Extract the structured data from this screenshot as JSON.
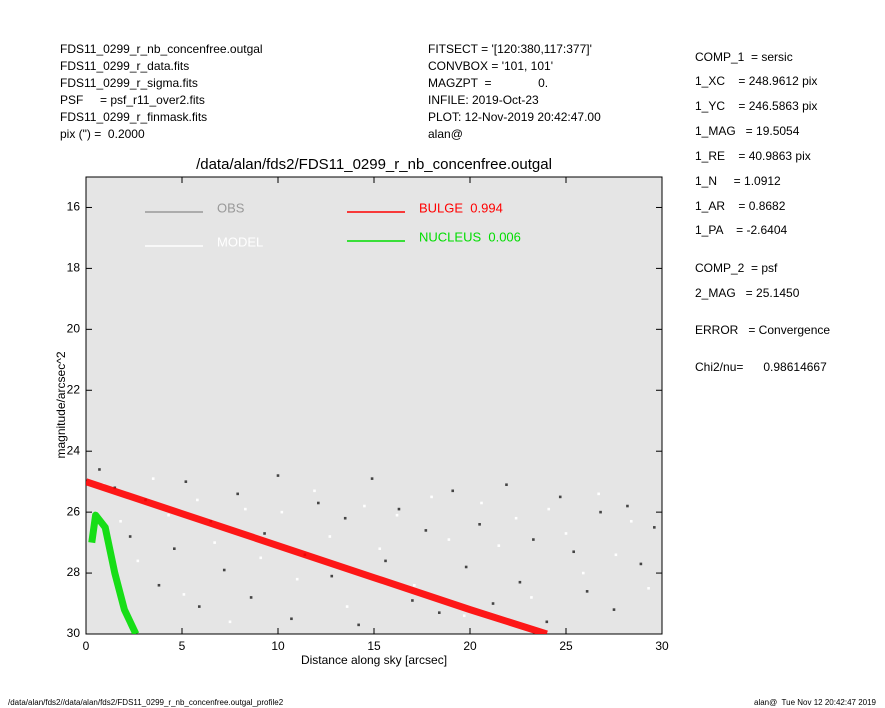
{
  "header": {
    "left": [
      "FDS11_0299_r_nb_concenfree.outgal",
      "FDS11_0299_r_data.fits",
      "FDS11_0299_r_sigma.fits",
      "PSF     = psf_r11_over2.fits",
      "FDS11_0299_r_finmask.fits",
      "pix (\") =  0.2000"
    ],
    "middle": [
      "FITSECT = '[120:380,117:377]'",
      "CONVBOX = '101, 101'",
      "MAGZPT  =              0.",
      "INFILE: 2019-Oct-23",
      "PLOT: 12-Nov-2019 20:42:47.00",
      "alan@"
    ],
    "right": [
      "COMP_1  = sersic",
      "1_XC    = 248.9612 pix",
      "1_YC    = 246.5863 pix",
      "1_MAG   = 19.5054",
      "1_RE    = 40.9863 pix",
      "1_N     = 1.0912",
      "1_AR    = 0.8682",
      "1_PA    = -2.6404",
      "COMP_2  = psf",
      "2_MAG   = 25.1450",
      "ERROR   = Convergence",
      "Chi2/nu=      0.98614667"
    ]
  },
  "footer": {
    "left": "/data/alan/fds2//data/alan/fds2/FDS11_0299_r_nb_concenfree.outgal_profile2",
    "right": "alan@  Tue Nov 12 20:42:47 2019"
  },
  "chart_data": {
    "type": "scatter",
    "title": "/data/alan/fds2/FDS11_0299_r_nb_concenfree.outgal",
    "x_label": "Distance along sky [arcsec]",
    "y_label": "magnitude/arcsec^2",
    "xlim": [
      0,
      30
    ],
    "xticks": [
      0,
      5,
      10,
      15,
      20,
      25,
      30
    ],
    "ylim": [
      30,
      15
    ],
    "yticks": [
      16,
      18,
      20,
      22,
      24,
      26,
      28,
      30
    ],
    "series": [
      {
        "name": "OBS",
        "color": "#444444",
        "legend_color": "#999999",
        "mode": "points",
        "x": [
          0.7,
          1.5,
          2.3,
          3.1,
          3.8,
          4.6,
          5.2,
          5.9,
          6.5,
          7.2,
          7.9,
          8.6,
          9.3,
          10.0,
          10.7,
          11.4,
          12.1,
          12.8,
          13.5,
          14.2,
          14.9,
          15.6,
          16.3,
          17.0,
          17.7,
          18.4,
          19.1,
          19.8,
          20.5,
          21.2,
          21.9,
          22.6,
          23.3,
          24.0,
          24.7,
          25.4,
          26.1,
          26.8,
          27.5,
          28.2,
          28.9,
          29.6
        ],
        "values": [
          24.6,
          25.2,
          26.8,
          25.6,
          28.4,
          27.2,
          25.0,
          29.1,
          26.3,
          27.9,
          25.4,
          28.8,
          26.7,
          24.8,
          29.5,
          27.4,
          25.7,
          28.1,
          26.2,
          29.7,
          24.9,
          27.6,
          25.9,
          28.9,
          26.6,
          29.3,
          25.3,
          27.8,
          26.4,
          29.0,
          25.1,
          28.3,
          26.9,
          29.6,
          25.5,
          27.3,
          28.6,
          26.0,
          29.2,
          25.8,
          27.7,
          26.5
        ]
      },
      {
        "name": "MODEL",
        "color": "#ffffff",
        "legend_color": "#ffffff",
        "mode": "points",
        "x": [
          0.9,
          1.8,
          2.7,
          3.5,
          4.3,
          5.1,
          5.8,
          6.7,
          7.5,
          8.3,
          9.1,
          10.2,
          11.0,
          11.9,
          12.7,
          13.6,
          14.5,
          15.3,
          16.2,
          17.1,
          18.0,
          18.9,
          19.7,
          20.6,
          21.5,
          22.4,
          23.2,
          24.1,
          25.0,
          25.9,
          26.7,
          27.6,
          28.4,
          29.3
        ],
        "values": [
          25.1,
          26.3,
          27.6,
          24.9,
          26.1,
          28.7,
          25.6,
          27.0,
          29.6,
          25.9,
          27.5,
          26.0,
          28.2,
          25.3,
          26.8,
          29.1,
          25.8,
          27.2,
          26.1,
          28.4,
          25.5,
          26.9,
          29.4,
          25.7,
          27.1,
          26.2,
          28.8,
          25.9,
          26.7,
          28.0,
          25.4,
          27.4,
          26.3,
          28.5
        ]
      },
      {
        "name": "BULGE  0.994",
        "color": "#ff0000",
        "legend_color": "#ff0000",
        "mode": "band",
        "x": [
          0,
          5,
          10,
          15,
          20,
          24
        ],
        "values": [
          25.0,
          26.05,
          27.1,
          28.15,
          29.2,
          30.0
        ]
      },
      {
        "name": "NUCLEUS  0.006",
        "color": "#00dd00",
        "legend_color": "#00dd00",
        "mode": "band",
        "x": [
          0.3,
          0.5,
          1.0,
          1.5,
          2.0,
          2.6
        ],
        "values": [
          27.0,
          26.1,
          26.5,
          28.0,
          29.2,
          30.0
        ]
      }
    ]
  }
}
